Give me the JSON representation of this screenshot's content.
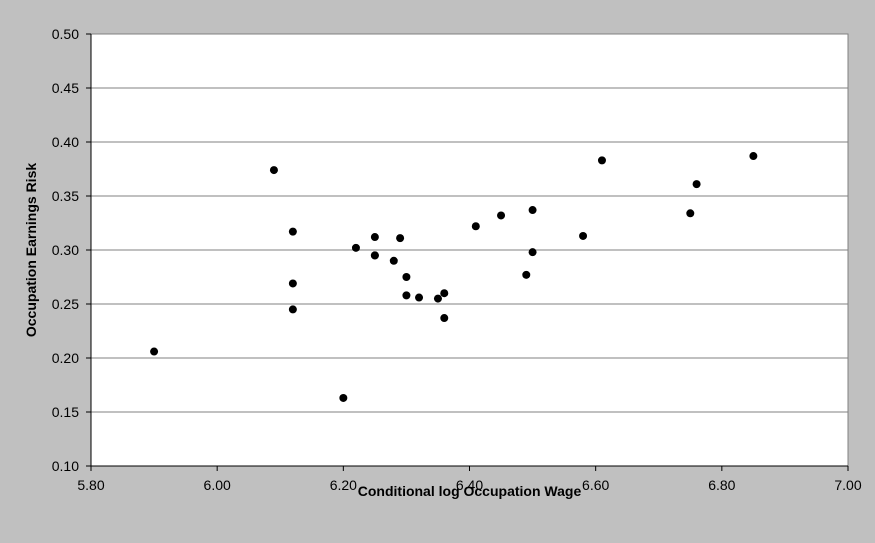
{
  "chart_data": {
    "type": "scatter",
    "title": "",
    "xlabel": "Conditional log Occupation Wage",
    "ylabel": "Occupation Earnings Risk",
    "xlim": [
      5.8,
      7.0
    ],
    "ylim": [
      0.1,
      0.5
    ],
    "xticks": [
      "5.80",
      "6.00",
      "6.20",
      "6.40",
      "6.60",
      "6.80",
      "7.00"
    ],
    "yticks": [
      "0.10",
      "0.15",
      "0.20",
      "0.25",
      "0.30",
      "0.35",
      "0.40",
      "0.45",
      "0.50"
    ],
    "grid": "horizontal",
    "legend": "none",
    "plot_background": "#ffffff",
    "frame_background": "#c0c0c0",
    "marker_color": "#000000",
    "grid_color": "#808080",
    "points": [
      {
        "x": 5.9,
        "y": 0.206
      },
      {
        "x": 6.09,
        "y": 0.374
      },
      {
        "x": 6.12,
        "y": 0.317
      },
      {
        "x": 6.12,
        "y": 0.269
      },
      {
        "x": 6.12,
        "y": 0.245
      },
      {
        "x": 6.2,
        "y": 0.163
      },
      {
        "x": 6.22,
        "y": 0.302
      },
      {
        "x": 6.25,
        "y": 0.295
      },
      {
        "x": 6.25,
        "y": 0.312
      },
      {
        "x": 6.25,
        "y": 0.295
      },
      {
        "x": 6.28,
        "y": 0.29
      },
      {
        "x": 6.29,
        "y": 0.311
      },
      {
        "x": 6.3,
        "y": 0.275
      },
      {
        "x": 6.3,
        "y": 0.258
      },
      {
        "x": 6.32,
        "y": 0.256
      },
      {
        "x": 6.35,
        "y": 0.255
      },
      {
        "x": 6.36,
        "y": 0.237
      },
      {
        "x": 6.36,
        "y": 0.26
      },
      {
        "x": 6.41,
        "y": 0.322
      },
      {
        "x": 6.45,
        "y": 0.332
      },
      {
        "x": 6.49,
        "y": 0.277
      },
      {
        "x": 6.5,
        "y": 0.337
      },
      {
        "x": 6.5,
        "y": 0.298
      },
      {
        "x": 6.58,
        "y": 0.313
      },
      {
        "x": 6.61,
        "y": 0.383
      },
      {
        "x": 6.75,
        "y": 0.334
      },
      {
        "x": 6.76,
        "y": 0.361
      },
      {
        "x": 6.85,
        "y": 0.387
      }
    ]
  }
}
